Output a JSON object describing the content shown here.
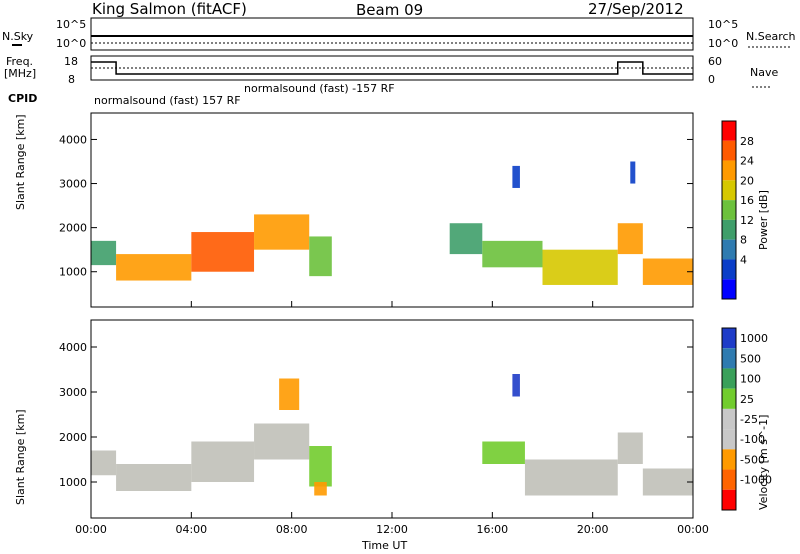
{
  "header": {
    "title": "King Salmon (fitACF)",
    "beam": "Beam 09",
    "date": "27/Sep/2012"
  },
  "top_panels": {
    "nsky_label": "N.Sky",
    "nsearch_label": "N.Search",
    "freq_label_1": "Freq.",
    "freq_label_2": "[MHz]",
    "nave_label": "Nave",
    "cpid_label": "CPID",
    "noise_ticks_left": [
      "10^5",
      "10^0"
    ],
    "noise_ticks_right": [
      "10^5",
      "10^0"
    ],
    "freq_ticks": [
      "18",
      "8"
    ],
    "nave_ticks": [
      "60",
      "0"
    ],
    "cpid_text_1": "normalsound (fast) 157 RF",
    "cpid_text_2": "normalsound (fast) -157 RF"
  },
  "colors": {
    "power_scale": [
      "#0000ff",
      "#0a3ec8",
      "#2f7bb0",
      "#3f9e6a",
      "#6cc13c",
      "#d6c800",
      "#ff9a00",
      "#ff5a00",
      "#ff0000"
    ],
    "velocity_scale": [
      "#1e3cc8",
      "#2f7bb0",
      "#3aa05a",
      "#72cc2e",
      "#c8c8c8",
      "#c8c8c8",
      "#ff9a00",
      "#ff6400",
      "#ff0000"
    ],
    "ground_scatter": "#c0c0b8"
  },
  "chart_data": [
    {
      "type": "heatmap",
      "name": "power",
      "ylabel": "Slant Range [km]",
      "xlabel": "",
      "x_range": [
        "00:00",
        "24:00"
      ],
      "ylim": [
        200,
        4600
      ],
      "y_ticks": [
        "1000",
        "2000",
        "3000",
        "4000"
      ],
      "colorbar_label": "Power [dB]",
      "colorbar_ticks": [
        "4",
        "8",
        "12",
        "16",
        "20",
        "24",
        "28"
      ],
      "bands": [
        {
          "t0": 0.0,
          "t1": 1.0,
          "r0": 1150,
          "r1": 1700,
          "level": 3
        },
        {
          "t0": 1.0,
          "t1": 4.0,
          "r0": 800,
          "r1": 1400,
          "level": 6
        },
        {
          "t0": 4.0,
          "t1": 6.5,
          "r0": 1000,
          "r1": 1900,
          "level": 7
        },
        {
          "t0": 6.5,
          "t1": 8.7,
          "r0": 1500,
          "r1": 2300,
          "level": 6
        },
        {
          "t0": 8.7,
          "t1": 9.6,
          "r0": 900,
          "r1": 1800,
          "level": 4
        },
        {
          "t0": 14.3,
          "t1": 15.6,
          "r0": 1400,
          "r1": 2100,
          "level": 3
        },
        {
          "t0": 15.6,
          "t1": 18.0,
          "r0": 1100,
          "r1": 1700,
          "level": 4
        },
        {
          "t0": 18.0,
          "t1": 21.0,
          "r0": 700,
          "r1": 1500,
          "level": 5
        },
        {
          "t0": 21.0,
          "t1": 22.0,
          "r0": 1400,
          "r1": 2100,
          "level": 6
        },
        {
          "t0": 22.0,
          "t1": 24.0,
          "r0": 700,
          "r1": 1300,
          "level": 6
        },
        {
          "t0": 16.8,
          "t1": 17.1,
          "r0": 2900,
          "r1": 3400,
          "level": 1
        },
        {
          "t0": 21.5,
          "t1": 21.7,
          "r0": 3000,
          "r1": 3500,
          "level": 1
        }
      ]
    },
    {
      "type": "heatmap",
      "name": "velocity",
      "ylabel": "Slant Range [km]",
      "xlabel": "Time UT",
      "x_range": [
        "00:00",
        "24:00"
      ],
      "ylim": [
        200,
        4600
      ],
      "y_ticks": [
        "1000",
        "2000",
        "3000",
        "4000"
      ],
      "x_ticks": [
        "00:00",
        "04:00",
        "08:00",
        "12:00",
        "16:00",
        "20:00",
        "00:00"
      ],
      "colorbar_label": "Velocity [m s^-1]",
      "colorbar_ticks": [
        "1000",
        "500",
        "100",
        "25",
        "-25",
        "-100",
        "-500",
        "-1000"
      ],
      "bands": [
        {
          "t0": 0.0,
          "t1": 1.0,
          "r0": 1150,
          "r1": 1700,
          "class": "ground"
        },
        {
          "t0": 1.0,
          "t1": 4.0,
          "r0": 800,
          "r1": 1400,
          "class": "ground"
        },
        {
          "t0": 4.0,
          "t1": 6.5,
          "r0": 1000,
          "r1": 1900,
          "class": "ground"
        },
        {
          "t0": 6.5,
          "t1": 8.7,
          "r0": 1500,
          "r1": 2300,
          "class": "ground"
        },
        {
          "t0": 8.7,
          "t1": 9.6,
          "r0": 900,
          "r1": 1800,
          "class": "green"
        },
        {
          "t0": 8.9,
          "t1": 9.4,
          "r0": 700,
          "r1": 1000,
          "class": "orange"
        },
        {
          "t0": 7.5,
          "t1": 8.3,
          "r0": 2600,
          "r1": 3300,
          "class": "orange"
        },
        {
          "t0": 15.6,
          "t1": 17.3,
          "r0": 1400,
          "r1": 1900,
          "class": "green"
        },
        {
          "t0": 17.3,
          "t1": 21.0,
          "r0": 700,
          "r1": 1500,
          "class": "ground"
        },
        {
          "t0": 21.0,
          "t1": 22.0,
          "r0": 1400,
          "r1": 2100,
          "class": "ground"
        },
        {
          "t0": 22.0,
          "t1": 24.0,
          "r0": 700,
          "r1": 1300,
          "class": "ground"
        },
        {
          "t0": 16.8,
          "t1": 17.1,
          "r0": 2900,
          "r1": 3400,
          "class": "blue"
        }
      ]
    }
  ]
}
